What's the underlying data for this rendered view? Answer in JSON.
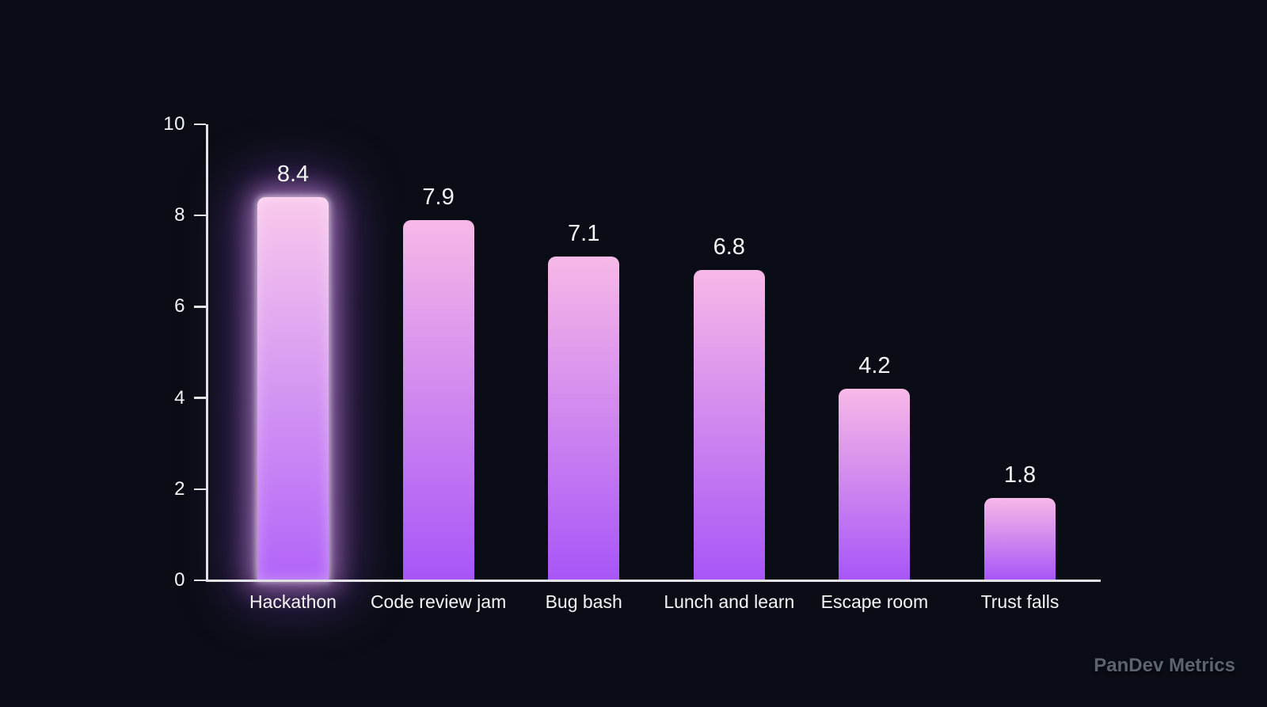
{
  "watermark": "PanDev Metrics",
  "colors": {
    "background": "#0a0d15",
    "axis": "#e2e2e6",
    "text": "#f5f5f7",
    "bar_top": "#f6b9e7",
    "bar_bottom": "#a855f7",
    "highlight_glow": "#e9a8f0",
    "watermark_text": "#5d6470"
  },
  "chart_data": {
    "type": "bar",
    "title": "",
    "xlabel": "",
    "ylabel": "",
    "categories": [
      "Hackathon",
      "Code review jam",
      "Bug bash",
      "Lunch and learn",
      "Escape room",
      "Trust falls"
    ],
    "values": [
      8.4,
      7.9,
      7.1,
      6.8,
      4.2,
      1.8
    ],
    "data_labels": [
      "8.4",
      "7.9",
      "7.1",
      "6.8",
      "4.2",
      "1.8"
    ],
    "ylim": [
      0,
      10
    ],
    "yticks": [
      0,
      2,
      4,
      6,
      8,
      10
    ],
    "highlight_index": 0,
    "grid": false,
    "legend": null,
    "bar_style": "vertical gradient pink-to-purple, rounded top corners, highlighted first bar with glow"
  }
}
